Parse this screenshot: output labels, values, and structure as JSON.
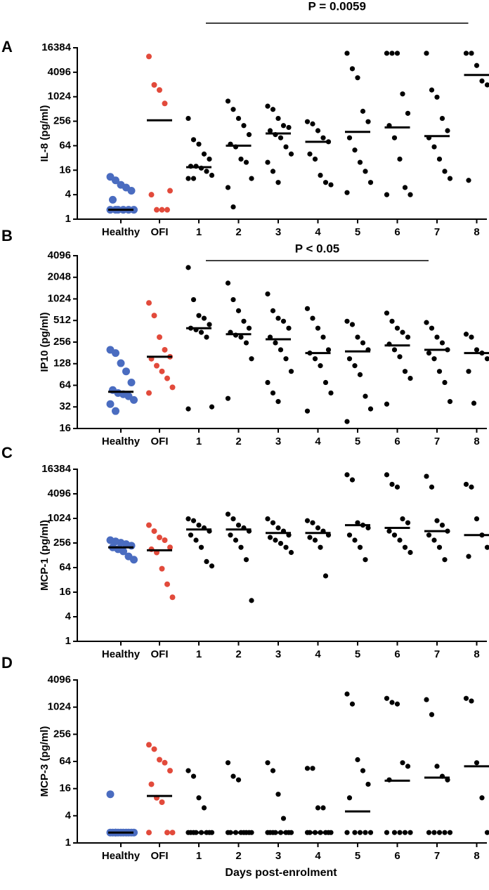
{
  "chart_data": [
    {
      "type": "scatter",
      "label": "A",
      "ylabel": "IL-8 (pg/ml)",
      "annotation": "P = 0.0059",
      "yscale": "log",
      "ylim": [
        1,
        16384
      ],
      "yticks": [
        1,
        4,
        16,
        64,
        256,
        1024,
        4096,
        16384
      ],
      "categories": [
        "Healthy",
        "OFI",
        "1",
        "2",
        "3",
        "4",
        "5",
        "6",
        "7",
        "8"
      ],
      "colors": [
        "#4a6cc0",
        "#e24a3b",
        "#000000",
        "#000000",
        "#000000",
        "#000000",
        "#000000",
        "#000000",
        "#000000",
        "#000000"
      ],
      "points": [
        [
          11,
          9,
          7,
          6,
          5,
          3,
          1.7,
          1.7,
          1.7,
          1.7,
          1.7,
          1.7
        ],
        [
          10000,
          2000,
          1500,
          700,
          5,
          4,
          1.7,
          1.7,
          1.7
        ],
        [
          300,
          90,
          70,
          40,
          30,
          20,
          20,
          18,
          15,
          12,
          10,
          10
        ],
        [
          800,
          500,
          300,
          200,
          120,
          70,
          60,
          30,
          25,
          10,
          6,
          2
        ],
        [
          600,
          500,
          300,
          200,
          180,
          150,
          120,
          100,
          60,
          40,
          25,
          15,
          8
        ],
        [
          250,
          220,
          150,
          100,
          80,
          40,
          30,
          12,
          8,
          7
        ],
        [
          12000,
          5000,
          3000,
          450,
          250,
          100,
          50,
          25,
          15,
          8,
          4.5
        ],
        [
          12000,
          12000,
          12000,
          1200,
          400,
          200,
          100,
          30,
          6,
          4,
          4
        ],
        [
          12000,
          1500,
          1000,
          300,
          150,
          100,
          60,
          30,
          15,
          10
        ],
        [
          12000,
          12000,
          6000,
          2500,
          2000,
          9
        ]
      ],
      "medians": [
        1.7,
        270,
        19,
        64,
        128,
        80,
        140,
        180,
        110,
        3500
      ]
    },
    {
      "type": "scatter",
      "label": "B",
      "ylabel": "IP10 (pg/ml)",
      "annotation": "P < 0.05",
      "yscale": "log",
      "ylim": [
        16,
        4096
      ],
      "yticks": [
        16,
        32,
        64,
        128,
        256,
        512,
        1024,
        2048,
        4096
      ],
      "categories": [
        "Healthy",
        "OFI",
        "1",
        "2",
        "3",
        "4",
        "5",
        "6",
        "7",
        "8"
      ],
      "colors": [
        "#4a6cc0",
        "#e24a3b",
        "#000000",
        "#000000",
        "#000000",
        "#000000",
        "#000000",
        "#000000",
        "#000000",
        "#000000"
      ],
      "points": [
        [
          200,
          180,
          130,
          100,
          70,
          55,
          50,
          48,
          45,
          40,
          35,
          28
        ],
        [
          900,
          600,
          300,
          200,
          160,
          150,
          120,
          100,
          80,
          60,
          50
        ],
        [
          2800,
          1000,
          600,
          550,
          450,
          400,
          380,
          350,
          300,
          32,
          30
        ],
        [
          1700,
          1000,
          700,
          500,
          400,
          350,
          320,
          300,
          250,
          150,
          42
        ],
        [
          1200,
          700,
          550,
          500,
          400,
          300,
          250,
          200,
          150,
          100,
          70,
          50,
          38
        ],
        [
          750,
          550,
          400,
          300,
          200,
          180,
          150,
          120,
          70,
          50,
          28
        ],
        [
          500,
          450,
          300,
          250,
          200,
          150,
          120,
          90,
          45,
          30,
          20
        ],
        [
          650,
          500,
          400,
          350,
          300,
          240,
          200,
          160,
          100,
          80,
          35
        ],
        [
          480,
          400,
          300,
          250,
          200,
          180,
          150,
          100,
          70,
          38
        ],
        [
          330,
          300,
          200,
          180,
          150,
          100,
          36
        ]
      ],
      "medians": [
        52,
        160,
        400,
        330,
        280,
        180,
        190,
        230,
        200,
        180
      ]
    },
    {
      "type": "scatter",
      "label": "C",
      "ylabel": "MCP-1 (pg/ml)",
      "yscale": "log",
      "ylim": [
        1,
        16384
      ],
      "yticks": [
        1,
        4,
        16,
        64,
        256,
        1024,
        4096,
        16384
      ],
      "categories": [
        "Healthy",
        "OFI",
        "1",
        "2",
        "3",
        "4",
        "5",
        "6",
        "7",
        "8"
      ],
      "colors": [
        "#4a6cc0",
        "#e24a3b",
        "#000000",
        "#000000",
        "#000000",
        "#000000",
        "#000000",
        "#000000",
        "#000000",
        "#000000"
      ],
      "points": [
        [
          300,
          280,
          260,
          240,
          220,
          200,
          180,
          160,
          120,
          100
        ],
        [
          700,
          500,
          350,
          300,
          200,
          180,
          150,
          60,
          25,
          12
        ],
        [
          1000,
          900,
          700,
          600,
          500,
          400,
          300,
          200,
          90,
          70
        ],
        [
          1300,
          1000,
          700,
          600,
          500,
          400,
          300,
          200,
          100,
          10
        ],
        [
          1000,
          800,
          600,
          500,
          400,
          350,
          300,
          250,
          200,
          150
        ],
        [
          900,
          800,
          600,
          500,
          400,
          350,
          300,
          200,
          40
        ],
        [
          12000,
          9000,
          800,
          700,
          600,
          400,
          300,
          200,
          100
        ],
        [
          12000,
          7000,
          6000,
          1000,
          800,
          500,
          400,
          300,
          200,
          150
        ],
        [
          11000,
          6000,
          900,
          700,
          500,
          400,
          300,
          200,
          100
        ],
        [
          7000,
          6000,
          1000,
          400,
          200,
          120
        ]
      ],
      "medians": [
        200,
        170,
        550,
        550,
        450,
        450,
        700,
        600,
        500,
        400
      ]
    },
    {
      "type": "scatter",
      "label": "D",
      "ylabel": "MCP-3 (pg/ml)",
      "xlabel": "Days post-enrolment",
      "yscale": "log",
      "ylim": [
        1,
        4096
      ],
      "yticks": [
        1,
        4,
        16,
        64,
        256,
        1024,
        4096
      ],
      "categories": [
        "Healthy",
        "OFI",
        "1",
        "2",
        "3",
        "4",
        "5",
        "6",
        "7",
        "8"
      ],
      "colors": [
        "#4a6cc0",
        "#e24a3b",
        "#000000",
        "#000000",
        "#000000",
        "#000000",
        "#000000",
        "#000000",
        "#000000",
        "#000000"
      ],
      "points": [
        [
          12,
          1.7,
          1.7,
          1.7,
          1.7,
          1.7,
          1.7,
          1.7,
          1.7,
          1.7,
          1.7,
          1.7
        ],
        [
          150,
          120,
          70,
          60,
          40,
          20,
          10,
          8,
          1.7,
          1.7,
          1.7
        ],
        [
          40,
          30,
          10,
          6,
          1.7,
          1.7,
          1.7,
          1.7,
          1.7,
          1.7,
          1.7,
          1.7
        ],
        [
          60,
          30,
          25,
          1.7,
          1.7,
          1.7,
          1.7,
          1.7,
          1.7,
          1.7,
          1.7
        ],
        [
          60,
          40,
          12,
          3.5,
          1.7,
          1.7,
          1.7,
          1.7,
          1.7,
          1.7,
          1.7,
          1.7
        ],
        [
          45,
          45,
          6,
          6,
          1.7,
          1.7,
          1.7,
          1.7,
          1.7,
          1.7,
          1.7
        ],
        [
          2000,
          1200,
          70,
          40,
          20,
          10,
          1.7,
          1.7,
          1.7,
          1.7,
          1.7
        ],
        [
          1600,
          1300,
          1200,
          60,
          50,
          25,
          1.7,
          1.7,
          1.7,
          1.7,
          1.7
        ],
        [
          1500,
          700,
          50,
          30,
          25,
          1.7,
          1.7,
          1.7,
          1.7,
          1.7
        ],
        [
          1600,
          1400,
          60,
          10,
          1.7
        ]
      ],
      "medians": [
        1.7,
        11,
        1.7,
        1.7,
        1.7,
        1.7,
        5,
        24,
        28,
        50
      ]
    }
  ]
}
